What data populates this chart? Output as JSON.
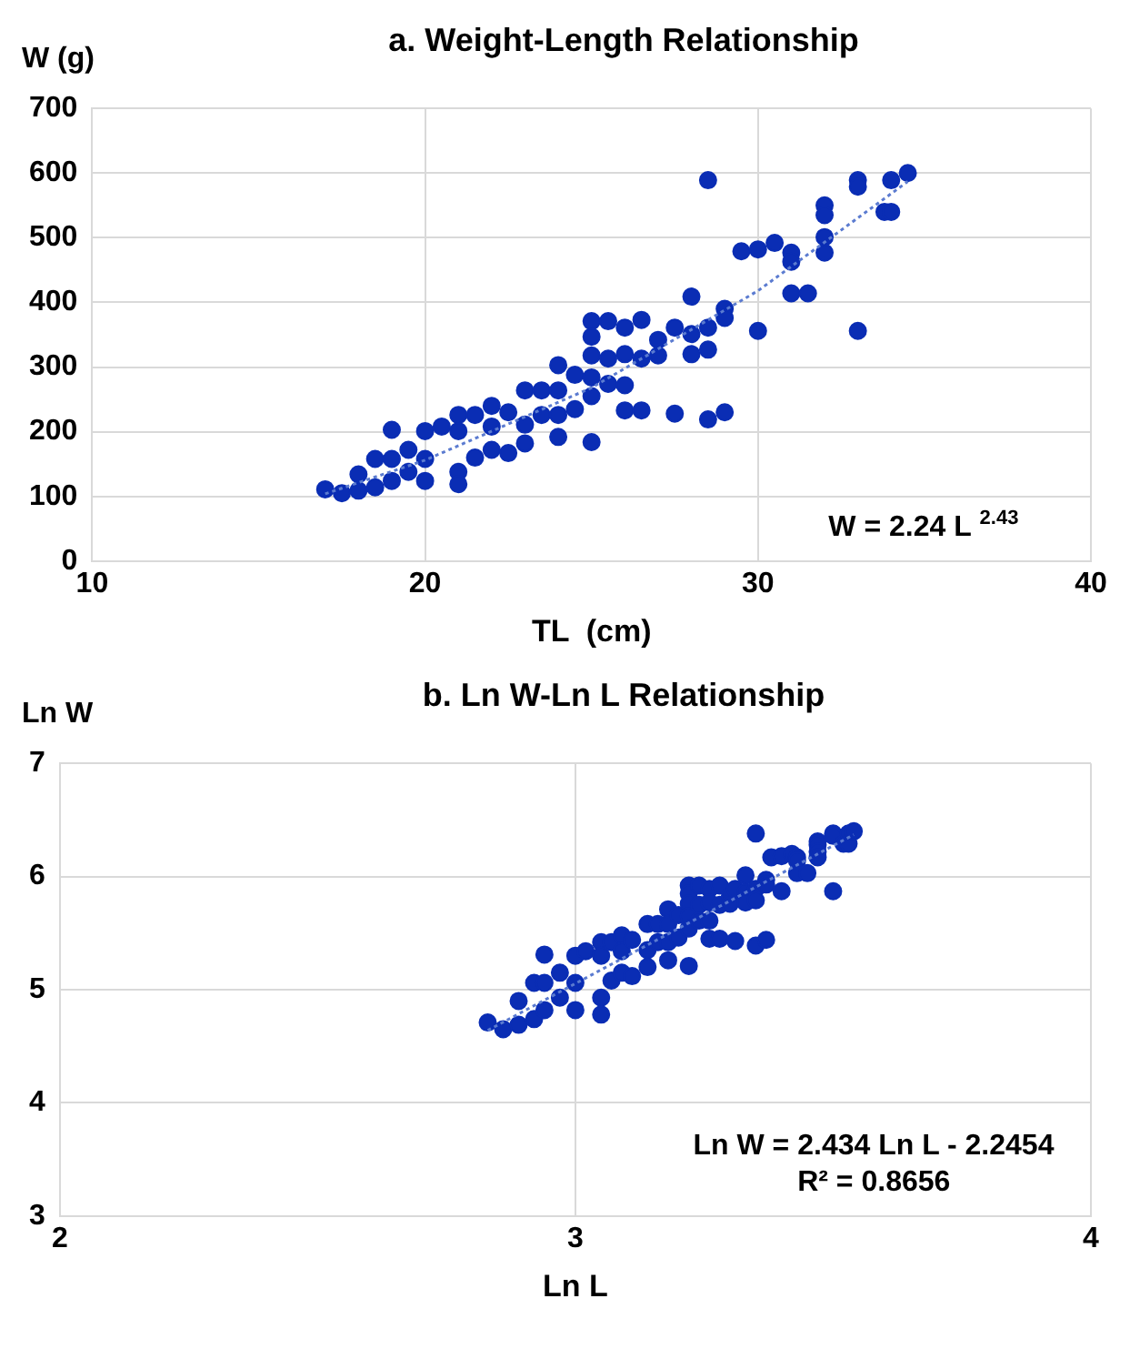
{
  "chart_data": [
    {
      "type": "scatter",
      "title": "a. Weight-Length Relationship",
      "xlabel": "TL  (cm)",
      "ylabel": "W (g)",
      "xlim": [
        10,
        40
      ],
      "xticks": [
        10,
        20,
        30,
        40
      ],
      "ylim": [
        0,
        700
      ],
      "yticks": [
        0,
        100,
        200,
        300,
        400,
        500,
        600,
        700
      ],
      "grid": true,
      "legend": false,
      "marker": "circle",
      "annotations": [
        "W = 2.24 L $^{2.43}$"
      ],
      "series": [
        {
          "color": "#0a2db4",
          "x": [
            17.0,
            17.5,
            18.0,
            18.0,
            18.5,
            18.5,
            19.0,
            19.0,
            19.0,
            19.5,
            19.5,
            20.0,
            20.0,
            20.0,
            20.5,
            21.0,
            21.0,
            21.0,
            21.0,
            21.5,
            21.5,
            22.0,
            22.0,
            22.0,
            22.5,
            22.5,
            23.0,
            23.0,
            23.0,
            23.5,
            23.5,
            24.0,
            24.0,
            24.0,
            24.0,
            24.5,
            24.5,
            25.0,
            25.0,
            25.0,
            25.0,
            25.0,
            25.0,
            25.5,
            25.5,
            25.5,
            26.0,
            26.0,
            26.0,
            26.0,
            26.5,
            26.5,
            26.5,
            27.0,
            27.0,
            27.5,
            27.5,
            28.0,
            28.0,
            28.0,
            28.5,
            28.5,
            28.5,
            28.5,
            29.0,
            29.0,
            29.0,
            29.5,
            30.0,
            30.0,
            30.5,
            31.0,
            31.0,
            31.0,
            31.5,
            32.0,
            32.0,
            32.0,
            32.0,
            33.0,
            33.0,
            33.0,
            33.8,
            34.0,
            34.0,
            34.5
          ],
          "values": [
            111,
            105,
            109,
            134,
            114,
            158,
            203,
            124,
            158,
            172,
            138,
            201,
            158,
            124,
            208,
            226,
            201,
            138,
            119,
            226,
            160,
            240,
            208,
            172,
            230,
            167,
            264,
            211,
            182,
            264,
            226,
            303,
            264,
            226,
            192,
            288,
            235,
            371,
            347,
            318,
            284,
            255,
            184,
            371,
            313,
            274,
            361,
            320,
            272,
            233,
            373,
            313,
            233,
            342,
            318,
            361,
            228,
            409,
            351,
            320,
            589,
            361,
            327,
            219,
            390,
            376,
            230,
            479,
            482,
            356,
            492,
            477,
            463,
            414,
            414,
            550,
            535,
            501,
            477,
            589,
            579,
            356,
            540,
            589,
            540,
            600
          ]
        },
        {
          "type": "line",
          "line_style": "dotted",
          "marker": "none",
          "color": "#5b7bd0",
          "x": [
            17,
            20,
            25,
            30,
            34.5
          ],
          "values": [
            104,
            156,
            268,
            418,
            587
          ]
        }
      ]
    },
    {
      "type": "scatter",
      "title": "b. Ln W-Ln L Relationship",
      "xlabel": "Ln L",
      "ylabel": "Ln W",
      "xlim": [
        2,
        4
      ],
      "xticks": [
        2,
        3,
        4
      ],
      "ylim": [
        3,
        7
      ],
      "yticks": [
        3,
        4,
        5,
        6,
        7
      ],
      "grid": true,
      "legend": false,
      "marker": "circle",
      "annotations": [
        "Ln W = 2.434 Ln L - 2.2454",
        "R² = 0.8656"
      ],
      "series": [
        {
          "color": "#0a2db4",
          "x": [
            2.83,
            2.86,
            2.89,
            2.89,
            2.92,
            2.92,
            2.94,
            2.94,
            2.94,
            2.97,
            2.97,
            3.0,
            3.0,
            3.0,
            3.02,
            3.05,
            3.05,
            3.05,
            3.05,
            3.07,
            3.07,
            3.09,
            3.09,
            3.09,
            3.11,
            3.11,
            3.14,
            3.14,
            3.14,
            3.16,
            3.16,
            3.18,
            3.18,
            3.18,
            3.18,
            3.2,
            3.2,
            3.22,
            3.22,
            3.22,
            3.22,
            3.22,
            3.22,
            3.24,
            3.24,
            3.24,
            3.26,
            3.26,
            3.26,
            3.26,
            3.28,
            3.28,
            3.28,
            3.3,
            3.3,
            3.31,
            3.31,
            3.33,
            3.33,
            3.33,
            3.35,
            3.35,
            3.35,
            3.35,
            3.37,
            3.37,
            3.37,
            3.38,
            3.4,
            3.4,
            3.42,
            3.43,
            3.43,
            3.43,
            3.45,
            3.47,
            3.47,
            3.47,
            3.47,
            3.5,
            3.5,
            3.5,
            3.52,
            3.53,
            3.53,
            3.54
          ],
          "values": [
            4.71,
            4.65,
            4.69,
            4.9,
            4.74,
            5.06,
            5.31,
            4.82,
            5.06,
            5.15,
            4.93,
            5.3,
            5.06,
            4.82,
            5.34,
            5.42,
            5.3,
            4.93,
            4.78,
            5.42,
            5.08,
            5.48,
            5.34,
            5.15,
            5.44,
            5.12,
            5.58,
            5.35,
            5.2,
            5.58,
            5.42,
            5.71,
            5.58,
            5.42,
            5.26,
            5.66,
            5.46,
            5.92,
            5.85,
            5.76,
            5.65,
            5.54,
            5.21,
            5.92,
            5.75,
            5.61,
            5.89,
            5.77,
            5.61,
            5.45,
            5.92,
            5.75,
            5.45,
            5.83,
            5.76,
            5.89,
            5.43,
            6.01,
            5.86,
            5.77,
            6.38,
            5.89,
            5.79,
            5.39,
            5.97,
            5.93,
            5.44,
            6.17,
            6.18,
            5.87,
            6.2,
            6.17,
            6.14,
            6.03,
            6.03,
            6.31,
            6.28,
            6.22,
            6.17,
            6.38,
            6.36,
            5.87,
            6.29,
            6.38,
            6.29,
            6.4
          ]
        },
        {
          "type": "line",
          "line_style": "dotted",
          "marker": "none",
          "color": "#5b7bd0",
          "x": [
            2.83,
            3.54
          ],
          "values": [
            4.64,
            6.37
          ]
        }
      ]
    }
  ]
}
